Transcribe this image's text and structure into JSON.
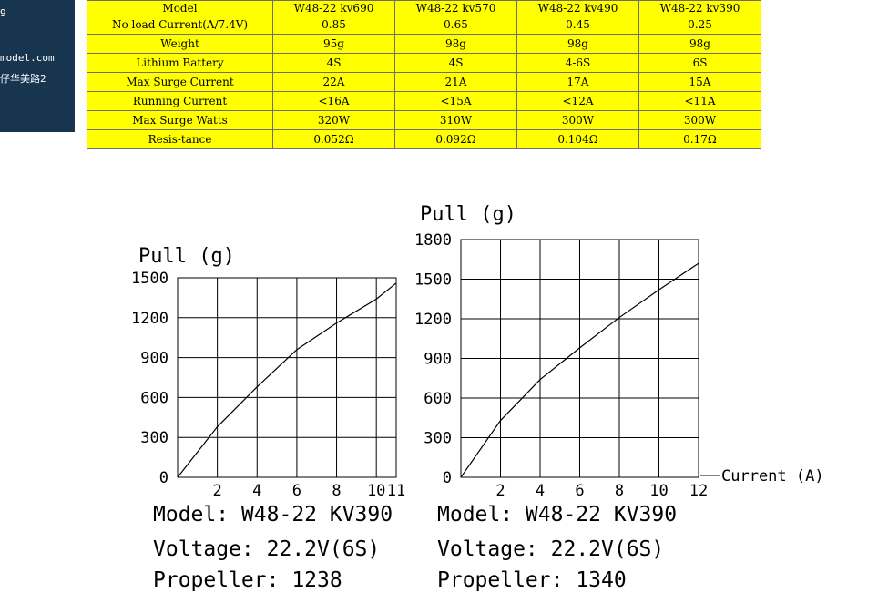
{
  "sidebar": {
    "line1": "9",
    "line2": "model.com",
    "line3": "仔华美路2"
  },
  "spec_table": {
    "header": [
      "Model",
      "W48-22 kv690",
      "W48-22 kv570",
      "W48-22 kv490",
      "W48-22 kv390"
    ],
    "rows": [
      [
        "No load Current(A/7.4V)",
        "0.85",
        "0.65",
        "0.45",
        "0.25"
      ],
      [
        "Weight",
        "95g",
        "98g",
        "98g",
        "98g"
      ],
      [
        "Lithium Battery",
        "4S",
        "4S",
        "4-6S",
        "6S"
      ],
      [
        "Max Surge Current",
        "22A",
        "21A",
        "17A",
        "15A"
      ],
      [
        "Running Current",
        "<16A",
        "<15A",
        "<12A",
        "<11A"
      ],
      [
        "Max Surge Watts",
        "320W",
        "310W",
        "300W",
        "300W"
      ],
      [
        "Resis-tance",
        "0.052Ω",
        "0.092Ω",
        "0.104Ω",
        "0.17Ω"
      ]
    ],
    "background": "#ffff00"
  },
  "chart_data": [
    {
      "type": "line",
      "title": "Pull (g)",
      "xlabel": "",
      "ylabel": "Pull (g)",
      "xlim": [
        0,
        11
      ],
      "ylim": [
        0,
        1500
      ],
      "x_ticks": [
        2,
        4,
        6,
        8,
        10,
        11
      ],
      "y_ticks": [
        0,
        300,
        600,
        900,
        1200,
        1500
      ],
      "grid": true,
      "series": [
        {
          "x": [
            0,
            2,
            4,
            6,
            8,
            10,
            11
          ],
          "y": [
            0,
            380,
            680,
            960,
            1160,
            1340,
            1460
          ]
        }
      ],
      "caption": {
        "model": "Model: W48-22 KV390",
        "voltage": "Voltage: 22.2V(6S)",
        "propeller": "Propeller: 1238"
      }
    },
    {
      "type": "line",
      "title": "Pull (g)",
      "xlabel": "Current (A)",
      "ylabel": "Pull (g)",
      "xlim": [
        0,
        12
      ],
      "ylim": [
        0,
        1800
      ],
      "x_ticks": [
        2,
        4,
        6,
        8,
        10,
        12
      ],
      "y_ticks": [
        0,
        300,
        600,
        900,
        1200,
        1500,
        1800
      ],
      "grid": true,
      "series": [
        {
          "x": [
            0,
            2,
            4,
            6,
            8,
            10,
            12
          ],
          "y": [
            0,
            430,
            740,
            980,
            1210,
            1420,
            1620
          ]
        }
      ],
      "caption": {
        "model": "Model: W48-22 KV390",
        "voltage": "Voltage: 22.2V(6S)",
        "propeller": "Propeller: 1340"
      }
    }
  ]
}
